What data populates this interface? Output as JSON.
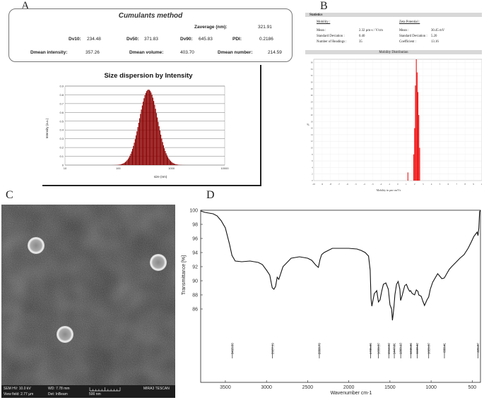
{
  "panels": {
    "a": "A",
    "b": "B",
    "c": "C",
    "d": "D"
  },
  "cumulants": {
    "title": "Cumulants method",
    "zaverage_label": "Zaverage (nm):",
    "zaverage_value": "321.91",
    "dv10_label": "Dv10:",
    "dv10_value": "234.48",
    "dv50_label": "Dv50:",
    "dv50_value": "371.83",
    "dv90_label": "Dv90:",
    "dv90_value": "645.83",
    "pdi_label": "PDI:",
    "pdi_value": "0.2186",
    "dmean_intensity_label": "Dmean intensity:",
    "dmean_intensity_value": "357.26",
    "dmean_volume_label": "Dmean volume:",
    "dmean_volume_value": "403.70",
    "dmean_number_label": "Dmean number:",
    "dmean_number_value": "214.59"
  },
  "zeta_stats": {
    "header": "Statistics",
    "mobility_title": "Mobility :",
    "mobility_rows": [
      {
        "label": "Mean :",
        "value": "2.32 µm·s / V/cm"
      },
      {
        "label": "Standard Deviation :",
        "value": "0.40"
      },
      {
        "label": "Number of Readings :",
        "value": "35"
      }
    ],
    "zeta_title": "Zeta Potential :",
    "zeta_rows": [
      {
        "label": "Mean :",
        "value": "30.45 mV"
      },
      {
        "label": "Standard Deviation :",
        "value": "5.20"
      },
      {
        "label": "Coefficient :",
        "value": "13.16"
      }
    ],
    "dist_header": "Mobility Distribution"
  },
  "sem": {
    "hv": "SEM HV: 10.0 kV",
    "wd": "WD: 7.78 mm",
    "brand": "MIRA3 TESCAN",
    "view_field": "View field: 2.77 µm",
    "det": "Det: InBeam",
    "scale": "500 nm"
  },
  "chart_data": [
    {
      "type": "bar",
      "title": "Size dispersion by Intensity",
      "xlabel": "size (nm)",
      "ylabel": "Intensity (a.u.)",
      "x_scale": "log",
      "xlim": [
        10,
        10000
      ],
      "ylim": [
        0,
        0.9
      ],
      "x_ticks": [
        "10",
        "100",
        "1000",
        "10000"
      ],
      "y_ticks": [
        "0",
        "0.1",
        "0.2",
        "0.3",
        "0.4",
        "0.5",
        "0.6",
        "0.7",
        "0.8",
        "0.9"
      ],
      "distribution": {
        "shape": "lognormal",
        "peak_size_nm": 371.83,
        "peak_value": 0.86,
        "dv10_nm": 234.48,
        "dv90_nm": 645.83,
        "extent_nm": [
          70,
          2200
        ]
      },
      "bar_color": "#8b0000",
      "grid": true
    },
    {
      "type": "bar",
      "title": "Mobility Distribution",
      "xlabel": "Mobility in µm·cm/Vs",
      "ylabel": "%",
      "xlim": [
        -10,
        10
      ],
      "ylim": [
        0,
        37
      ],
      "x_ticks": [
        "-10",
        "-9",
        "-8",
        "-7",
        "-6",
        "-5",
        "-4",
        "-3",
        "-2",
        "-1",
        "0",
        "1",
        "2",
        "3",
        "4",
        "5",
        "6",
        "7",
        "8",
        "9",
        "10"
      ],
      "x": [
        1.2,
        1.9,
        2.0,
        2.1,
        2.2,
        2.3,
        2.4,
        2.5,
        2.6
      ],
      "values": [
        2.5,
        8,
        16,
        29,
        37,
        33,
        27,
        20,
        10
      ],
      "bar_color": "#ee0000",
      "grid": true
    },
    {
      "type": "line",
      "title": "",
      "xlabel": "Wavenumber cm-1",
      "ylabel": "Transmittance [%]",
      "xlim": [
        3800,
        400
      ],
      "x_reversed": true,
      "ylim": [
        84,
        100
      ],
      "x_ticks": [
        "3500",
        "3000",
        "2500",
        "2000",
        "1500",
        "1000",
        "500"
      ],
      "y_ticks": [
        "86",
        "88",
        "90",
        "92",
        "94",
        "96",
        "98",
        "100"
      ],
      "x": [
        3800,
        3750,
        3700,
        3650,
        3600,
        3550,
        3500,
        3450,
        3420,
        3380,
        3300,
        3200,
        3100,
        3050,
        3000,
        2960,
        2930,
        2910,
        2890,
        2870,
        2850,
        2800,
        2700,
        2600,
        2500,
        2450,
        2400,
        2370,
        2350,
        2330,
        2300,
        2250,
        2200,
        2100,
        2000,
        1900,
        1850,
        1800,
        1760,
        1740,
        1730,
        1720,
        1710,
        1690,
        1680,
        1660,
        1640,
        1620,
        1600,
        1580,
        1550,
        1520,
        1500,
        1480,
        1470,
        1460,
        1450,
        1440,
        1420,
        1400,
        1380,
        1370,
        1350,
        1320,
        1300,
        1280,
        1260,
        1250,
        1230,
        1200,
        1180,
        1160,
        1150,
        1120,
        1100,
        1080,
        1050,
        1029,
        1010,
        980,
        950,
        920,
        890,
        870,
        840,
        820,
        800,
        780,
        750,
        700,
        650,
        600,
        550,
        520,
        500,
        480,
        460,
        440,
        430,
        420,
        410,
        400
      ],
      "values": [
        99.9,
        99.7,
        99.6,
        99.5,
        99.2,
        98.5,
        97.5,
        95.2,
        93.6,
        92.8,
        92.7,
        92.8,
        92.6,
        92.3,
        91.5,
        90.8,
        89.0,
        88.8,
        89.2,
        90.5,
        90.2,
        92.0,
        93.2,
        93.4,
        93.2,
        92.9,
        92.2,
        91.9,
        93.0,
        93.7,
        94.0,
        94.3,
        94.6,
        94.6,
        94.6,
        94.5,
        94.3,
        94.0,
        93.5,
        91.5,
        87.5,
        86.4,
        87.0,
        88.2,
        88.3,
        88.6,
        87.0,
        87.3,
        88.5,
        89.5,
        89.7,
        88.8,
        86.6,
        86.0,
        84.4,
        85.3,
        86.5,
        88.0,
        89.5,
        89.9,
        88.8,
        87.2,
        88.0,
        89.3,
        89.5,
        88.9,
        88.5,
        88.6,
        88.2,
        88.0,
        88.7,
        88.5,
        88.0,
        87.8,
        87.1,
        86.5,
        87.3,
        87.7,
        88.8,
        89.8,
        90.4,
        91.0,
        90.6,
        90.3,
        90.4,
        90.8,
        91.2,
        91.6,
        92.0,
        92.6,
        93.2,
        93.7,
        94.6,
        95.3,
        95.8,
        96.3,
        96.6,
        96.9,
        96.4,
        97.5,
        99.8,
        100.0
      ],
      "peak_labels": [
        {
          "x": 3415,
          "label": "3415.33"
        },
        {
          "x": 2927,
          "label": "2927.19"
        },
        {
          "x": 2358,
          "label": "2358.79"
        },
        {
          "x": 1735,
          "label": "1735.05"
        },
        {
          "x": 1639,
          "label": "1639.27"
        },
        {
          "x": 1514,
          "label": "1514.62"
        },
        {
          "x": 1447,
          "label": "1447.81"
        },
        {
          "x": 1369,
          "label": "1369.13"
        },
        {
          "x": 1245,
          "label": "1245.36"
        },
        {
          "x": 1168,
          "label": "1168.42"
        },
        {
          "x": 1029,
          "label": "1029.87"
        },
        {
          "x": 838,
          "label": "838.41"
        },
        {
          "x": 431,
          "label": "431.27"
        }
      ],
      "grid": false
    }
  ]
}
